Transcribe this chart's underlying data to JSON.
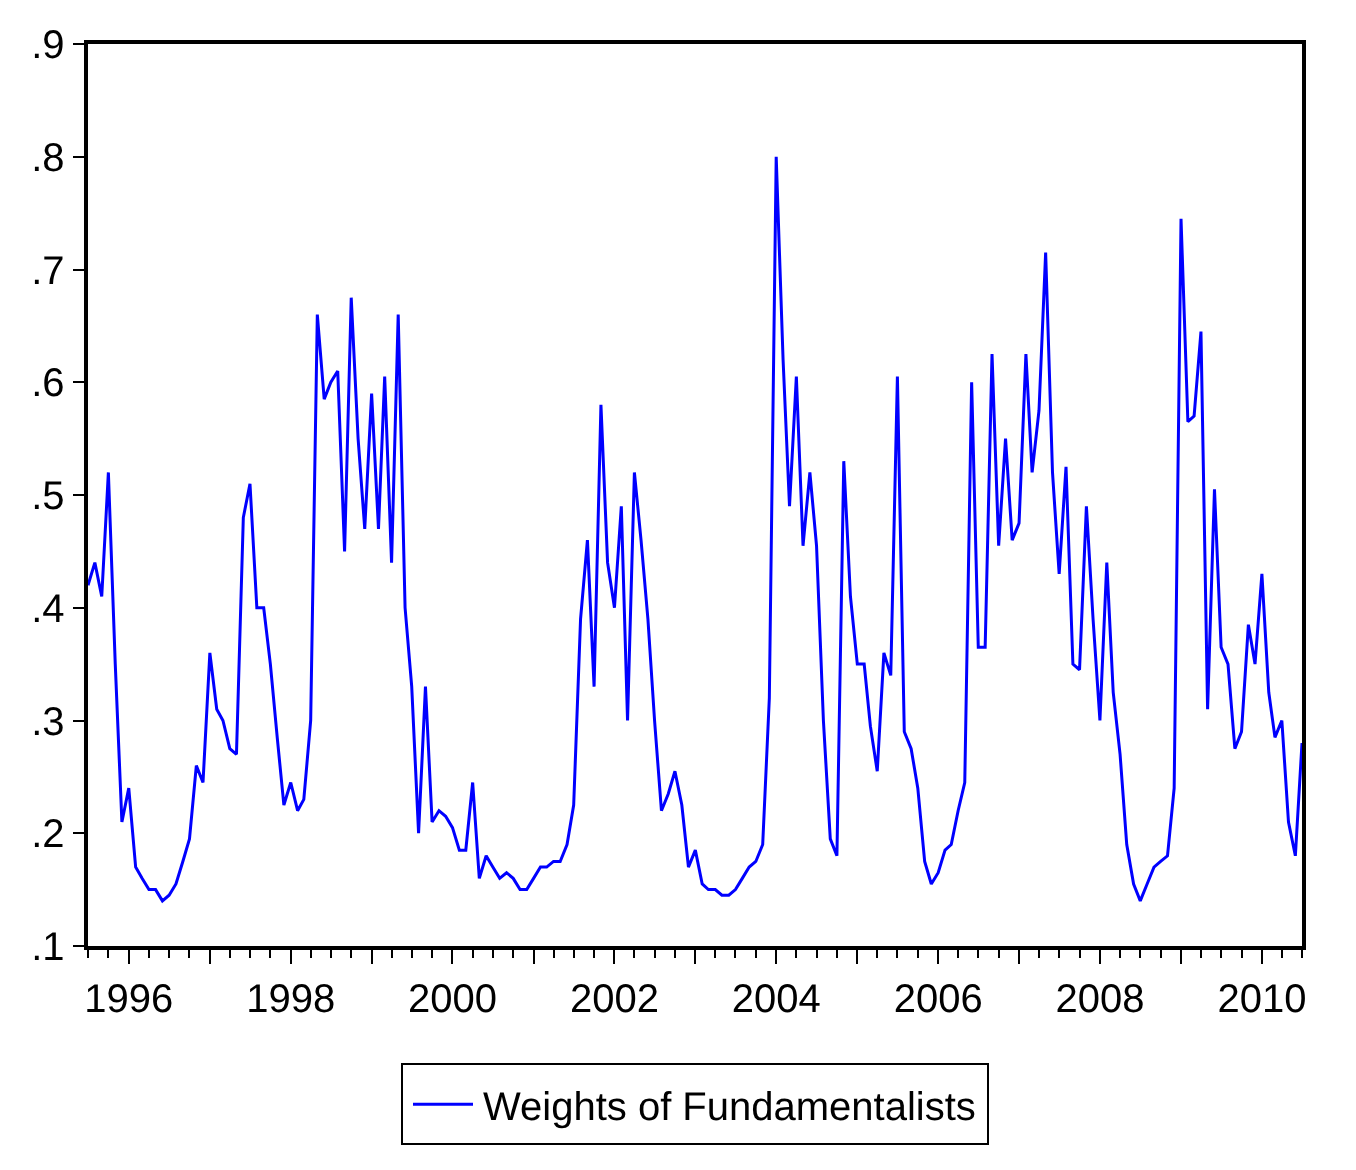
{
  "chart_data": {
    "type": "line",
    "x": [
      "1995-07",
      "1995-08",
      "1995-09",
      "1995-10",
      "1995-11",
      "1995-12",
      "1996-01",
      "1996-02",
      "1996-03",
      "1996-04",
      "1996-05",
      "1996-06",
      "1996-07",
      "1996-08",
      "1996-09",
      "1996-10",
      "1996-11",
      "1996-12",
      "1997-01",
      "1997-02",
      "1997-03",
      "1997-04",
      "1997-05",
      "1997-06",
      "1997-07",
      "1997-08",
      "1997-09",
      "1997-10",
      "1997-11",
      "1997-12",
      "1998-01",
      "1998-02",
      "1998-03",
      "1998-04",
      "1998-05",
      "1998-06",
      "1998-07",
      "1998-08",
      "1998-09",
      "1998-10",
      "1998-11",
      "1998-12",
      "1999-01",
      "1999-02",
      "1999-03",
      "1999-04",
      "1999-05",
      "1999-06",
      "1999-07",
      "1999-08",
      "1999-09",
      "1999-10",
      "1999-11",
      "1999-12",
      "2000-01",
      "2000-02",
      "2000-03",
      "2000-04",
      "2000-05",
      "2000-06",
      "2000-07",
      "2000-08",
      "2000-09",
      "2000-10",
      "2000-11",
      "2000-12",
      "2001-01",
      "2001-02",
      "2001-03",
      "2001-04",
      "2001-05",
      "2001-06",
      "2001-07",
      "2001-08",
      "2001-09",
      "2001-10",
      "2001-11",
      "2001-12",
      "2002-01",
      "2002-02",
      "2002-03",
      "2002-04",
      "2002-05",
      "2002-06",
      "2002-07",
      "2002-08",
      "2002-09",
      "2002-10",
      "2002-11",
      "2002-12",
      "2003-01",
      "2003-02",
      "2003-03",
      "2003-04",
      "2003-05",
      "2003-06",
      "2003-07",
      "2003-08",
      "2003-09",
      "2003-10",
      "2003-11",
      "2003-12",
      "2004-01",
      "2004-02",
      "2004-03",
      "2004-04",
      "2004-05",
      "2004-06",
      "2004-07",
      "2004-08",
      "2004-09",
      "2004-10",
      "2004-11",
      "2004-12",
      "2005-01",
      "2005-02",
      "2005-03",
      "2005-04",
      "2005-05",
      "2005-06",
      "2005-07",
      "2005-08",
      "2005-09",
      "2005-10",
      "2005-11",
      "2005-12",
      "2006-01",
      "2006-02",
      "2006-03",
      "2006-04",
      "2006-05",
      "2006-06",
      "2006-07",
      "2006-08",
      "2006-09",
      "2006-10",
      "2006-11",
      "2006-12",
      "2007-01",
      "2007-02",
      "2007-03",
      "2007-04",
      "2007-05",
      "2007-06",
      "2007-07",
      "2007-08",
      "2007-09",
      "2007-10",
      "2007-11",
      "2007-12",
      "2008-01",
      "2008-02",
      "2008-03",
      "2008-04",
      "2008-05",
      "2008-06",
      "2008-07",
      "2008-08",
      "2008-09",
      "2008-10",
      "2008-11",
      "2008-12",
      "2009-01",
      "2009-02",
      "2009-03",
      "2009-04",
      "2009-05",
      "2009-06",
      "2009-07",
      "2009-08",
      "2009-09",
      "2009-10",
      "2009-11",
      "2009-12",
      "2010-01",
      "2010-02",
      "2010-03",
      "2010-04",
      "2010-05",
      "2010-06",
      "2010-07"
    ],
    "series": [
      {
        "name": "Weights of Fundamentalists",
        "color": "#0000ff",
        "values": [
          0.42,
          0.44,
          0.41,
          0.52,
          0.35,
          0.21,
          0.24,
          0.17,
          0.16,
          0.15,
          0.15,
          0.14,
          0.145,
          0.155,
          0.175,
          0.195,
          0.26,
          0.245,
          0.36,
          0.31,
          0.3,
          0.275,
          0.27,
          0.48,
          0.51,
          0.4,
          0.4,
          0.35,
          0.285,
          0.225,
          0.245,
          0.22,
          0.23,
          0.3,
          0.66,
          0.585,
          0.6,
          0.61,
          0.45,
          0.675,
          0.55,
          0.47,
          0.59,
          0.47,
          0.605,
          0.44,
          0.66,
          0.4,
          0.33,
          0.2,
          0.33,
          0.21,
          0.22,
          0.215,
          0.205,
          0.185,
          0.185,
          0.245,
          0.16,
          0.18,
          0.17,
          0.16,
          0.165,
          0.16,
          0.15,
          0.15,
          0.16,
          0.17,
          0.17,
          0.175,
          0.175,
          0.19,
          0.225,
          0.39,
          0.46,
          0.33,
          0.58,
          0.44,
          0.4,
          0.49,
          0.3,
          0.52,
          0.46,
          0.39,
          0.3,
          0.22,
          0.235,
          0.255,
          0.225,
          0.17,
          0.185,
          0.155,
          0.15,
          0.15,
          0.145,
          0.145,
          0.15,
          0.16,
          0.17,
          0.175,
          0.19,
          0.32,
          0.8,
          0.62,
          0.49,
          0.605,
          0.455,
          0.52,
          0.455,
          0.3,
          0.195,
          0.18,
          0.53,
          0.41,
          0.35,
          0.35,
          0.295,
          0.255,
          0.36,
          0.34,
          0.605,
          0.29,
          0.275,
          0.24,
          0.175,
          0.155,
          0.165,
          0.185,
          0.19,
          0.22,
          0.245,
          0.6,
          0.365,
          0.365,
          0.625,
          0.455,
          0.55,
          0.46,
          0.475,
          0.625,
          0.52,
          0.575,
          0.715,
          0.52,
          0.43,
          0.525,
          0.35,
          0.345,
          0.49,
          0.39,
          0.3,
          0.44,
          0.325,
          0.27,
          0.19,
          0.155,
          0.14,
          0.155,
          0.17,
          0.175,
          0.18,
          0.24,
          0.745,
          0.565,
          0.57,
          0.645,
          0.31,
          0.505,
          0.365,
          0.35,
          0.275,
          0.29,
          0.385,
          0.35,
          0.43,
          0.325,
          0.285,
          0.3,
          0.21,
          0.18,
          0.28
        ]
      }
    ],
    "xlim": [
      "1995-07",
      "2010-07"
    ],
    "xticks": [
      {
        "value": "1996",
        "label": "1996"
      },
      {
        "value": "1997",
        "label": null
      },
      {
        "value": "1998",
        "label": "1998"
      },
      {
        "value": "1999",
        "label": null
      },
      {
        "value": "2000",
        "label": "2000"
      },
      {
        "value": "2001",
        "label": null
      },
      {
        "value": "2002",
        "label": "2002"
      },
      {
        "value": "2003",
        "label": null
      },
      {
        "value": "2004",
        "label": "2004"
      },
      {
        "value": "2005",
        "label": null
      },
      {
        "value": "2006",
        "label": "2006"
      },
      {
        "value": "2007",
        "label": null
      },
      {
        "value": "2008",
        "label": "2008"
      },
      {
        "value": "2009",
        "label": null
      },
      {
        "value": "2010",
        "label": "2010"
      }
    ],
    "ylim": [
      0.1,
      0.9
    ],
    "yticks": [
      {
        "value": 0.1,
        "label": ".1"
      },
      {
        "value": 0.2,
        "label": ".2"
      },
      {
        "value": 0.3,
        "label": ".3"
      },
      {
        "value": 0.4,
        "label": ".4"
      },
      {
        "value": 0.5,
        "label": ".5"
      },
      {
        "value": 0.6,
        "label": ".6"
      },
      {
        "value": 0.7,
        "label": ".7"
      },
      {
        "value": 0.8,
        "label": ".8"
      },
      {
        "value": 0.9,
        "label": ".9"
      }
    ],
    "legend": "bottom",
    "marker": "none",
    "line_style": "solid"
  }
}
